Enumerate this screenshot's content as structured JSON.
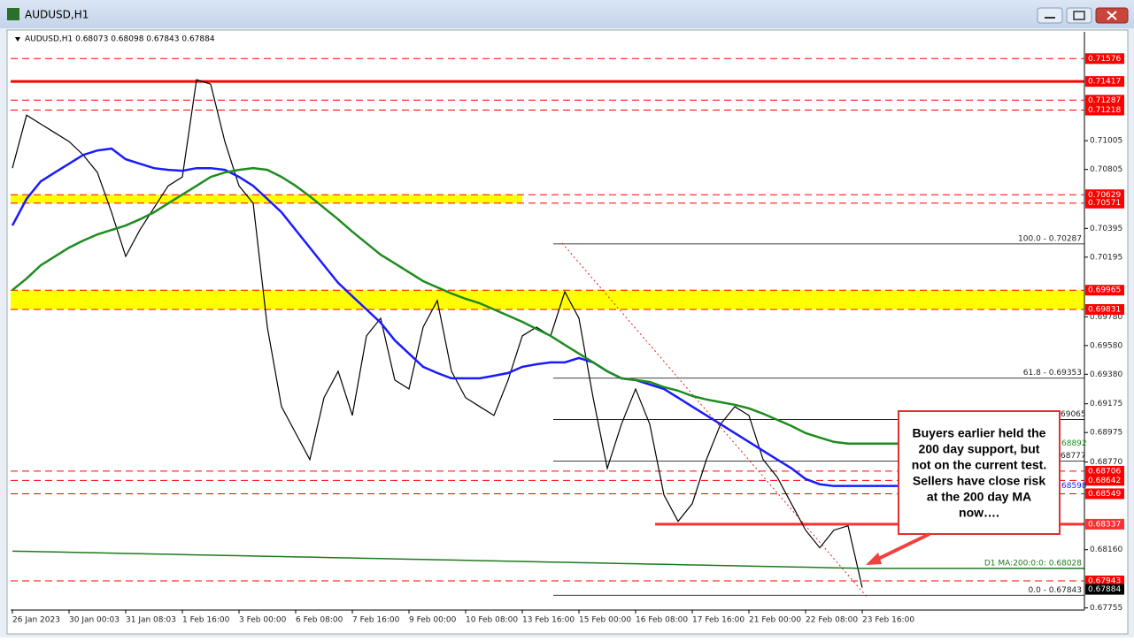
{
  "window_title": "AUDUSD,H1",
  "chart_data": {
    "type": "line",
    "header": "AUDUSD,H1  0.68073 0.68098 0.67843 0.67884",
    "categories": [
      "26 Jan 2023",
      null,
      null,
      null,
      "30 Jan 00:03",
      null,
      null,
      null,
      "31 Jan 08:03",
      null,
      null,
      null,
      "1 Feb 16:00",
      null,
      null,
      null,
      "3 Feb 00:00",
      null,
      null,
      null,
      "6 Feb 08:00",
      null,
      null,
      null,
      "7 Feb 16:00",
      null,
      null,
      null,
      "9 Feb 00:00",
      null,
      null,
      null,
      "10 Feb 08:00",
      null,
      null,
      null,
      "13 Feb 16:00",
      null,
      null,
      null,
      "15 Feb 00:00",
      null,
      null,
      null,
      "16 Feb 08:00",
      null,
      null,
      null,
      "17 Feb 16:00",
      null,
      null,
      null,
      "21 Feb 00:00",
      null,
      null,
      null,
      "22 Feb 08:00",
      null,
      null,
      null,
      "23 Feb 16:00"
    ],
    "series": [
      {
        "color": "#000000",
        "width": 1.2,
        "values": [
          0.70814,
          0.71183,
          0.71121,
          0.7106,
          0.70999,
          0.70906,
          0.70784,
          0.70507,
          0.702,
          0.70384,
          0.70538,
          0.70691,
          0.70753,
          0.71429,
          0.71398,
          0.70999,
          0.70691,
          0.70569,
          0.69708,
          0.69155,
          0.68971,
          0.68787,
          0.69217,
          0.69401,
          0.69094,
          0.69647,
          0.6977,
          0.6934,
          0.69278,
          0.69708,
          0.69893,
          0.69401,
          0.69217,
          0.69155,
          0.69094,
          0.6934,
          0.69647,
          0.69708,
          0.69647,
          0.69954,
          0.6977,
          0.69217,
          0.68726,
          0.69033,
          0.69278,
          0.69033,
          0.68541,
          0.68357,
          0.6848,
          0.68787,
          0.69033,
          0.69155,
          0.69094,
          0.68787,
          0.68664,
          0.6848,
          0.68296,
          0.68173,
          0.68296,
          0.68326,
          0.67896
        ]
      },
      {
        "color": "#1a1aff",
        "width": 2.5,
        "end_label": "68598",
        "values": [
          0.70415,
          0.706,
          0.70722,
          0.70784,
          0.70845,
          0.70906,
          0.70937,
          0.7095,
          0.70876,
          0.70845,
          0.70814,
          0.70802,
          0.70796,
          0.70814,
          0.70814,
          0.70802,
          0.70753,
          0.70691,
          0.706,
          0.70507,
          0.70384,
          0.70261,
          0.70138,
          0.70016,
          0.69923,
          0.69831,
          0.69739,
          0.69616,
          0.69524,
          0.69432,
          0.69389,
          0.69352,
          0.69352,
          0.69352,
          0.6937,
          0.69389,
          0.69432,
          0.6945,
          0.69463,
          0.69463,
          0.69493,
          0.69463,
          0.69401,
          0.69352,
          0.6934,
          0.69309,
          0.69278,
          0.69217,
          0.69155,
          0.69094,
          0.69033,
          0.68971,
          0.6891,
          0.68848,
          0.68787,
          0.68726,
          0.68652,
          0.68615,
          0.68603,
          0.68603,
          0.68603
        ]
      },
      {
        "color": "#1e8c1e",
        "width": 2.5,
        "end_label": "68892",
        "values": [
          0.69966,
          0.70046,
          0.70138,
          0.702,
          0.70261,
          0.7031,
          0.70353,
          0.70384,
          0.70415,
          0.70458,
          0.70507,
          0.70569,
          0.7063,
          0.70691,
          0.70753,
          0.70784,
          0.70802,
          0.70814,
          0.70802,
          0.70753,
          0.70691,
          0.70618,
          0.70538,
          0.70458,
          0.70372,
          0.70292,
          0.70212,
          0.70151,
          0.7009,
          0.70028,
          0.69985,
          0.69942,
          0.69905,
          0.69874,
          0.69831,
          0.69788,
          0.69745,
          0.69696,
          0.69647,
          0.69585,
          0.69524,
          0.69463,
          0.69401,
          0.69352,
          0.6934,
          0.69327,
          0.69291,
          0.69266,
          0.69229,
          0.69205,
          0.69186,
          0.69168,
          0.69143,
          0.69106,
          0.69063,
          0.69021,
          0.68971,
          0.6894,
          0.6891,
          0.68898,
          0.68898
        ]
      },
      {
        "color": "#1e7a1e",
        "width": 1.5,
        "name": "D1 MA:200:0:0: 0.68028",
        "values": [
          0.6815,
          0.68148,
          0.68146,
          0.68144,
          0.68142,
          0.6814,
          0.68138,
          0.68136,
          0.68134,
          0.68132,
          0.6813,
          0.68128,
          0.68126,
          0.68124,
          0.68122,
          0.6812,
          0.68118,
          0.68116,
          0.68114,
          0.68112,
          0.6811,
          0.68108,
          0.68106,
          0.68104,
          0.68102,
          0.681,
          0.68098,
          0.68096,
          0.68094,
          0.68092,
          0.6809,
          0.68088,
          0.68086,
          0.68084,
          0.68082,
          0.6808,
          0.68078,
          0.68076,
          0.68074,
          0.68072,
          0.6807,
          0.68068,
          0.68066,
          0.68064,
          0.68062,
          0.6806,
          0.68058,
          0.68056,
          0.68054,
          0.68052,
          0.6805,
          0.68048,
          0.68046,
          0.68044,
          0.68042,
          0.6804,
          0.68038,
          0.68036,
          0.68034,
          0.68032,
          0.6803
        ]
      }
    ],
    "ylim": [
      0.6774,
      0.7175
    ],
    "yticks": [
      {
        "value": 0.71005,
        "label": "0.71005"
      },
      {
        "value": 0.70805,
        "label": "0.70805"
      },
      {
        "value": 0.70395,
        "label": "0.70395"
      },
      {
        "value": 0.70195,
        "label": "0.70195"
      },
      {
        "value": 0.6978,
        "label": "0.69780"
      },
      {
        "value": 0.6958,
        "label": "0.69580"
      },
      {
        "value": 0.6938,
        "label": "0.69380"
      },
      {
        "value": 0.69175,
        "label": "0.69175"
      },
      {
        "value": 0.68975,
        "label": "0.68975"
      },
      {
        "value": 0.6877,
        "label": "0.68770"
      },
      {
        "value": 0.6816,
        "label": "0.68160"
      },
      {
        "value": 0.67755,
        "label": "0.67755"
      }
    ],
    "bands": [
      {
        "from": 0.70571,
        "to": 0.70629,
        "color": "#ffff00"
      },
      {
        "from": 0.69831,
        "to": 0.69965,
        "color": "#ffff00"
      }
    ],
    "levels": [
      {
        "value": 0.71576,
        "style": "dashed",
        "color": "#ff0000"
      },
      {
        "value": 0.71417,
        "style": "solid",
        "color": "#ff0000"
      },
      {
        "value": 0.71287,
        "style": "dashed",
        "color": "#ff0000"
      },
      {
        "value": 0.71218,
        "style": "dashed",
        "color": "#ff0000"
      },
      {
        "value": 0.70629,
        "style": "dashed",
        "color": "#ff0000"
      },
      {
        "value": 0.70571,
        "style": "dashed",
        "color": "#ff0000"
      },
      {
        "value": 0.69965,
        "style": "dashed",
        "color": "#ff0000"
      },
      {
        "value": 0.69831,
        "style": "dashed",
        "color": "#ff0000"
      },
      {
        "value": 0.68706,
        "style": "dashed",
        "color": "#ff0000"
      },
      {
        "value": 0.68642,
        "style": "dashed",
        "color": "#ff0000"
      },
      {
        "value": 0.68549,
        "style": "dashed",
        "color": "#ff0000"
      },
      {
        "value": 0.68337,
        "style": "solid",
        "color": "#ff3030"
      },
      {
        "value": 0.67943,
        "style": "dashed",
        "color": "#ff0000"
      },
      {
        "value": 0.67884,
        "style": "none",
        "color": "#000000"
      }
    ],
    "fib_levels": [
      {
        "value": 0.70287,
        "label": "100.0 - 0.70287"
      },
      {
        "value": 0.69353,
        "label": "61.8 - 0.69353"
      },
      {
        "value": 0.69065,
        "label": "69065"
      },
      {
        "value": 0.68777,
        "label": "68777"
      },
      {
        "value": 0.67843,
        "label": "0.0 - 0.67843"
      }
    ],
    "annotation": [
      "Buyers earlier held the",
      "200 day support, but",
      "not on the current test.",
      "Sellers have close risk",
      "at the 200 day MA",
      "now…."
    ]
  }
}
